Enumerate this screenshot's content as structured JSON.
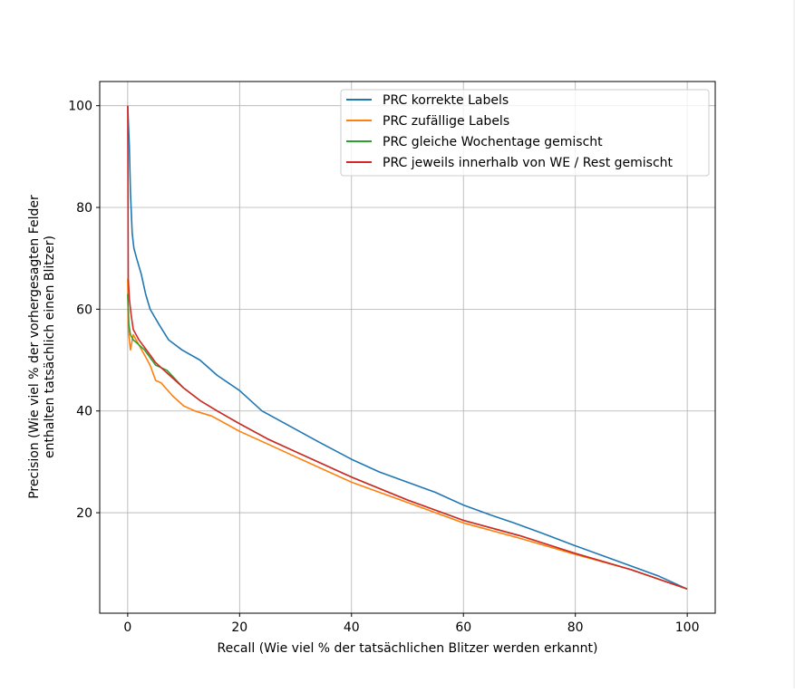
{
  "chart_data": {
    "type": "line",
    "title": "",
    "xlabel": "Recall (Wie viel % der tatsächlichen Blitzer werden erkannt)",
    "ylabel_lines": [
      "Precision (Wie viel % der vorhergesagten Felder",
      "enthalten tatsächlich einen Blitzer)"
    ],
    "xlim": [
      -5,
      105
    ],
    "ylim": [
      0.25,
      104.75
    ],
    "xticks": [
      0,
      20,
      40,
      60,
      80,
      100
    ],
    "yticks": [
      20,
      40,
      60,
      80,
      100
    ],
    "grid": true,
    "legend_position": "upper-right",
    "series": [
      {
        "name": "PRC korrekte Labels",
        "color": "#1f77b4",
        "x": [
          0,
          0.3,
          0.5,
          0.8,
          1.1,
          1.6,
          2.4,
          3.2,
          4,
          5.6,
          7.3,
          9.7,
          12.9,
          16,
          20,
          24,
          29,
          34,
          40,
          45,
          50,
          55,
          60,
          65,
          69,
          74,
          80,
          85,
          90,
          95,
          100
        ],
        "y": [
          100,
          92,
          83,
          75,
          72,
          70,
          67,
          63,
          60,
          57,
          54,
          52,
          50,
          47,
          44,
          40,
          37,
          34,
          30.5,
          28,
          26,
          24,
          21.5,
          19.5,
          18,
          16,
          13.5,
          11.5,
          9.5,
          7.5,
          5
        ]
      },
      {
        "name": "PRC zufällige Labels",
        "color": "#ff7f0e",
        "x": [
          0,
          0.1,
          0.5,
          1,
          2,
          3,
          4,
          5,
          6,
          8,
          10,
          12,
          15,
          20,
          25,
          30,
          40,
          50,
          60,
          70,
          80,
          90,
          100
        ],
        "y": [
          66,
          56,
          52,
          55,
          53,
          51,
          49,
          46,
          45.5,
          43,
          41,
          40,
          39,
          36,
          33.5,
          31,
          26,
          22,
          18,
          15,
          11.8,
          8.8,
          5
        ]
      },
      {
        "name": "PRC gleiche Wochentage gemischt",
        "color": "#2ca02c",
        "x": [
          0,
          0.2,
          0.5,
          1,
          2,
          3,
          5,
          7,
          10,
          13,
          16,
          20,
          25,
          30,
          40,
          50,
          60,
          70,
          80,
          90,
          100
        ],
        "y": [
          63,
          57,
          55,
          54,
          53,
          52,
          49,
          48,
          44.5,
          42,
          40,
          37.5,
          34.5,
          32,
          27,
          22.5,
          18.5,
          15.5,
          12,
          8.8,
          5
        ]
      },
      {
        "name": "PRC jeweils innerhalb von WE / Rest gemischt",
        "color": "#d62728",
        "x": [
          0,
          0.1,
          0.3,
          0.6,
          1,
          2,
          3,
          4,
          5,
          7,
          10,
          13,
          16,
          20,
          25,
          30,
          40,
          50,
          60,
          70,
          80,
          90,
          100
        ],
        "y": [
          100,
          66,
          62,
          59,
          56,
          54,
          52.5,
          51,
          49.5,
          47.5,
          44.5,
          42,
          40,
          37.5,
          34.5,
          32,
          27,
          22.5,
          18.5,
          15.5,
          12,
          8.8,
          5
        ]
      }
    ]
  }
}
